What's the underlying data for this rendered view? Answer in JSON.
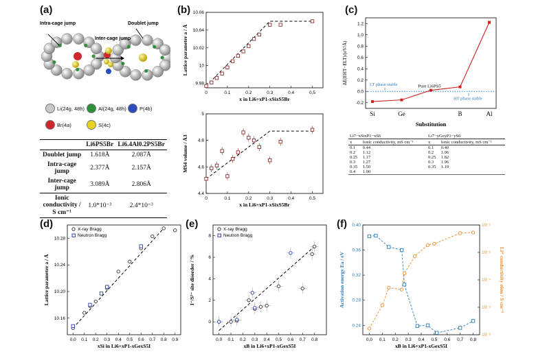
{
  "panel_labels": {
    "a": "(a)",
    "b": "(b)",
    "c": "(c)",
    "d": "(d)",
    "e": "(e)",
    "f": "(f)"
  },
  "panel_a": {
    "jump_labels": {
      "intra": "Intra-cage jump",
      "doublet": "Doublet jump",
      "inter": "Inter-cage jump"
    },
    "legend": [
      {
        "label": "Li(24g, 48h)",
        "color": "#c9c9c9"
      },
      {
        "label": "Al(24g, 48h)",
        "color": "#2f8f3a"
      },
      {
        "label": "P(4b)",
        "color": "#2b4bbf"
      },
      {
        "label": "Br(4a)",
        "color": "#d0262c"
      },
      {
        "label": "S(4c)",
        "color": "#e6d421"
      }
    ],
    "table": {
      "header": [
        "",
        "Li6PS5Br",
        "Li6.4Al0.2PS5Br"
      ],
      "rows": [
        [
          "Doublet jump",
          "1.618Å",
          "2.087Å"
        ],
        [
          "Intra-cage jump",
          "2.377Å",
          "2.157Å"
        ],
        [
          "Inter-cage jump",
          "3.089Å",
          "2.806Å"
        ],
        [
          "Ionic conductivity / S cm⁻¹",
          "1.0*10⁻³",
          "2.4*10⁻³"
        ]
      ]
    }
  },
  "chart_data": [
    {
      "id": "b-top",
      "type": "scatter",
      "ylabel": "Lattice parameter a / Å",
      "xlabel": "x in Li6+xP1-xSixS5Br",
      "xlim": [
        0,
        0.55
      ],
      "ylim": [
        9.975,
        10.06
      ],
      "xticks": [
        "0",
        "0.1",
        "0.2",
        "0.3",
        "0.4",
        "0.5"
      ],
      "yticks": [
        "9.98",
        "10",
        "10.02",
        "10.04",
        "10.06"
      ],
      "series": [
        {
          "x": [
            0,
            0.025,
            0.05,
            0.075,
            0.1,
            0.125,
            0.15,
            0.175,
            0.2,
            0.225,
            0.25,
            0.3,
            0.35,
            0.5
          ],
          "y": [
            9.977,
            9.981,
            9.986,
            9.991,
            9.998,
            10.005,
            10.011,
            10.016,
            10.022,
            10.03,
            10.035,
            10.046,
            10.046,
            10.05
          ]
        }
      ],
      "fit": {
        "x": [
          0,
          0.3,
          0.5
        ],
        "y": [
          9.977,
          10.05,
          10.05
        ]
      },
      "color": "#8b2a2a"
    },
    {
      "id": "b-bottom",
      "type": "scatter",
      "ylabel": "MS4 volume / Å3",
      "xlabel": "x in Li6+xP1-xSixS5Br",
      "xlim": [
        0,
        0.55
      ],
      "ylim": [
        4.4,
        5.0
      ],
      "xticks": [
        "0",
        "0.1",
        "0.2",
        "0.3",
        "0.4",
        "0.5"
      ],
      "yticks": [
        "4.4",
        "4.6",
        "4.8",
        "5"
      ],
      "series": [
        {
          "x": [
            0,
            0.025,
            0.05,
            0.075,
            0.1,
            0.125,
            0.15,
            0.175,
            0.2,
            0.225,
            0.25,
            0.3,
            0.35,
            0.5
          ],
          "y": [
            4.51,
            4.59,
            4.61,
            4.72,
            4.53,
            4.66,
            4.71,
            4.86,
            4.82,
            4.8,
            4.75,
            4.65,
            4.79,
            4.88
          ],
          "err": [
            0.03,
            0.03,
            0.03,
            0.03,
            0.03,
            0.03,
            0.03,
            0.03,
            0.03,
            0.03,
            0.03,
            0.03,
            0.03,
            0.03
          ]
        }
      ],
      "fit": {
        "x": [
          0,
          0.3,
          0.5
        ],
        "y": [
          4.51,
          4.87,
          4.87
        ]
      },
      "color": "#8b2a2a"
    },
    {
      "id": "c",
      "type": "line",
      "ylabel": "ΔE(EHT−ELT)/(eV/Å)",
      "xlabel": "Substitution",
      "categories": [
        "Si",
        "Ge",
        "Pure Li6PS5",
        "B",
        "Al"
      ],
      "xticks": [
        "Si",
        "Ge",
        "",
        "B",
        "Al"
      ],
      "values": [
        -0.18,
        -0.15,
        0.02,
        0.08,
        1.22
      ],
      "ylim": [
        -0.3,
        1.3
      ],
      "yticks": [
        "-0.2",
        "0.0",
        "0.2",
        "0.4",
        "0.6",
        "0.8",
        "1.0",
        "1.2"
      ],
      "annotations": {
        "lt": "LT phase stable",
        "ht": "HT phase stable",
        "pure": "Pure Li6PS5"
      },
      "color": "#d11f1f"
    },
    {
      "id": "d",
      "type": "scatter",
      "ylabel": "Lattice parameter a / Å",
      "xlabel": "xSi in Li6+xP1-xGexS5I",
      "xlim": [
        -0.05,
        0.95
      ],
      "ylim": [
        10.135,
        10.3
      ],
      "xticks": [
        "0.0",
        "0.1",
        "0.2",
        "0.3",
        "0.4",
        "0.5",
        "0.6",
        "0.7",
        "0.8",
        "0.9"
      ],
      "yticks": [
        "10.16",
        "10.20",
        "10.24",
        "10.28"
      ],
      "legend": [
        "X-ray Bragg",
        "Neutron Bragg"
      ],
      "series": [
        {
          "name": "X-ray Bragg",
          "x": [
            0,
            0.1,
            0.15,
            0.2,
            0.3,
            0.4,
            0.5,
            0.6,
            0.7,
            0.8,
            0.9
          ],
          "y": [
            10.145,
            10.168,
            10.178,
            10.185,
            10.205,
            10.23,
            10.245,
            10.265,
            10.283,
            10.295,
            10.292
          ]
        },
        {
          "name": "Neutron Bragg",
          "x": [
            0,
            0.15,
            0.25,
            0.3,
            0.6
          ],
          "y": [
            10.148,
            10.18,
            10.197,
            10.207,
            10.268
          ]
        }
      ],
      "fit": {
        "x": [
          0,
          0.8
        ],
        "y": [
          10.145,
          10.295
        ]
      },
      "colors": [
        "#333333",
        "#2b3fb0"
      ]
    },
    {
      "id": "e",
      "type": "scatter",
      "ylabel": "I⁻/S²⁻ site disorder / %",
      "xlabel": "xB in Li6+xP1-xGexS5I",
      "xlim": [
        -0.05,
        0.9
      ],
      "ylim": [
        -1.2,
        9
      ],
      "xticks": [
        "0.0",
        "0.1",
        "0.2",
        "0.3",
        "0.4",
        "0.5",
        "0.6",
        "0.7",
        "0.8"
      ],
      "yticks": [
        "0",
        "2",
        "4",
        "6",
        "8"
      ],
      "legend": [
        "X-ray Bragg",
        "Neutron Bragg"
      ],
      "series": [
        {
          "name": "X-ray Bragg",
          "x": [
            0,
            0.1,
            0.15,
            0.25,
            0.3,
            0.35,
            0.4,
            0.5,
            0.7,
            0.78,
            0.8
          ],
          "y": [
            0,
            0,
            0.1,
            2,
            1.2,
            1.4,
            1.5,
            3.3,
            3.1,
            6.3,
            7
          ]
        },
        {
          "name": "Neutron Bragg",
          "x": [
            0,
            0.15,
            0.28,
            0.3,
            0.6
          ],
          "y": [
            0,
            0.2,
            2.7,
            1.3,
            6.4
          ]
        }
      ],
      "fit": {
        "x": [
          0,
          0.8
        ],
        "y": [
          -0.8,
          7
        ]
      },
      "colors": [
        "#333333",
        "#2b3fb0"
      ]
    },
    {
      "id": "f",
      "type": "scatter",
      "ylabel": "Activation energy Ea / eV",
      "ylabel2": "Li⁺ conductivity σion / S cm⁻¹",
      "xlabel": "xB in Li6+xP1-xGexS5I",
      "xlim": [
        -0.05,
        0.85
      ],
      "ylim": [
        0.225,
        0.4
      ],
      "xticks": [
        "0.0",
        "0.1",
        "0.2",
        "0.3",
        "0.4",
        "0.5",
        "0.6",
        "0.7",
        "0.8"
      ],
      "yticks": [
        "0.24",
        "0.28",
        "0.32",
        "0.36",
        "0.40"
      ],
      "y2ticks": [
        "10⁻⁶",
        "10⁻⁵",
        "10⁻⁴",
        "10⁻³",
        "10⁻²"
      ],
      "series": [
        {
          "name": "Ea",
          "x": [
            0,
            0.05,
            0.15,
            0.25,
            0.27,
            0.37,
            0.45,
            0.52,
            0.7,
            0.8
          ],
          "y": [
            0.382,
            0.383,
            0.365,
            0.36,
            0.305,
            0.239,
            0.24,
            0.228,
            0.236,
            0.247
          ]
        },
        {
          "name": "sigma",
          "x": [
            0,
            0.1,
            0.15,
            0.25,
            0.27,
            0.35,
            0.45,
            0.5,
            0.7,
            0.8
          ],
          "y": [
            0.235,
            0.272,
            0.3,
            0.297,
            0.323,
            0.35,
            0.368,
            0.37,
            0.387,
            0.388
          ]
        }
      ],
      "colors": [
        "#2a7bbf",
        "#f08a2a"
      ]
    }
  ],
  "panel_c_table": {
    "left_title": "Li7−xSixP1−xS6",
    "right_title": "Li7−yGeyP1−yS6",
    "header": [
      "x",
      "Ionic conductivity, mS cm⁻¹",
      "x",
      "Ionic conductivity, mS cm⁻¹"
    ],
    "rows": [
      [
        "0.1",
        "0.44",
        "0.1",
        "0.40"
      ],
      [
        "0.2",
        "1.12",
        "0.2",
        "1.06"
      ],
      [
        "0.25",
        "1.17",
        "0.25",
        "1.82"
      ],
      [
        "0.3",
        "1.27",
        "0.3",
        "1.96"
      ],
      [
        "0.35",
        "1.50",
        "0.35",
        "1.19"
      ],
      [
        "0.4",
        "1.00",
        "",
        ""
      ]
    ]
  }
}
